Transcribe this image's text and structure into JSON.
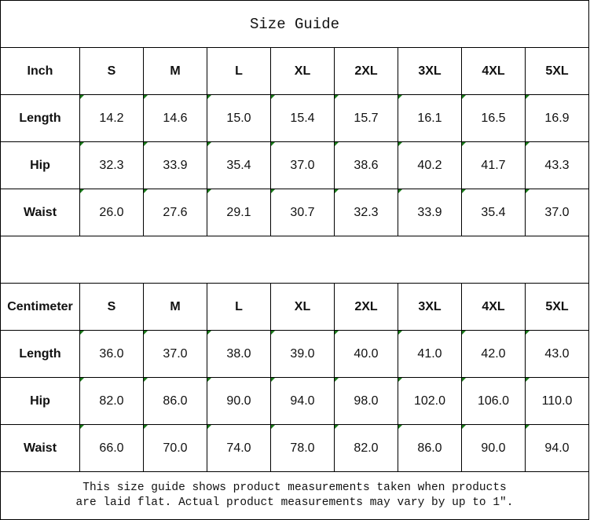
{
  "title": "Size Guide",
  "sizes": [
    "S",
    "M",
    "L",
    "XL",
    "2XL",
    "3XL",
    "4XL",
    "5XL"
  ],
  "tables": [
    {
      "unit": "Inch",
      "rows": [
        {
          "label": "Length",
          "values": [
            "14.2",
            "14.6",
            "15.0",
            "15.4",
            "15.7",
            "16.1",
            "16.5",
            "16.9"
          ]
        },
        {
          "label": "Hip",
          "values": [
            "32.3",
            "33.9",
            "35.4",
            "37.0",
            "38.6",
            "40.2",
            "41.7",
            "43.3"
          ]
        },
        {
          "label": "Waist",
          "values": [
            "26.0",
            "27.6",
            "29.1",
            "30.7",
            "32.3",
            "33.9",
            "35.4",
            "37.0"
          ]
        }
      ]
    },
    {
      "unit": "Centimeter",
      "rows": [
        {
          "label": "Length",
          "values": [
            "36.0",
            "37.0",
            "38.0",
            "39.0",
            "40.0",
            "41.0",
            "42.0",
            "43.0"
          ]
        },
        {
          "label": "Hip",
          "values": [
            "82.0",
            "86.0",
            "90.0",
            "94.0",
            "98.0",
            "102.0",
            "106.0",
            "110.0"
          ]
        },
        {
          "label": "Waist",
          "values": [
            "66.0",
            "70.0",
            "74.0",
            "78.0",
            "82.0",
            "86.0",
            "90.0",
            "94.0"
          ]
        }
      ]
    }
  ],
  "footer": {
    "line1": "This size guide shows product measurements taken when products",
    "line2": "are laid flat. Actual product measurements may vary by up to 1″."
  },
  "colors": {
    "cell_marker": "#1a7a1a",
    "border": "#000000"
  }
}
